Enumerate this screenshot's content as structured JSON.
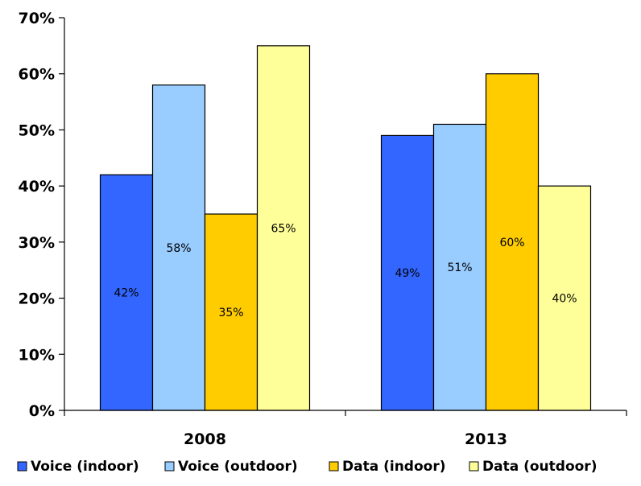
{
  "chart_data": {
    "type": "bar",
    "title": "",
    "xlabel": "",
    "ylabel": "",
    "categories": [
      "2008",
      "2013"
    ],
    "ylim": [
      0,
      70
    ],
    "yticks": [
      "0%",
      "10%",
      "20%",
      "30%",
      "40%",
      "50%",
      "60%",
      "70%"
    ],
    "grid": false,
    "legend_position": "bottom",
    "series": [
      {
        "name": "Voice (indoor)",
        "color": "#3366ff",
        "values": [
          42,
          49
        ],
        "labels": [
          "42%",
          "49%"
        ]
      },
      {
        "name": "Voice (outdoor)",
        "color": "#99ccff",
        "values": [
          58,
          51
        ],
        "labels": [
          "58%",
          "51%"
        ]
      },
      {
        "name": "Data (indoor)",
        "color": "#ffcc00",
        "values": [
          35,
          60
        ],
        "labels": [
          "35%",
          "60%"
        ]
      },
      {
        "name": "Data (outdoor)",
        "color": "#ffff99",
        "values": [
          65,
          40
        ],
        "labels": [
          "65%",
          "40%"
        ]
      }
    ]
  }
}
